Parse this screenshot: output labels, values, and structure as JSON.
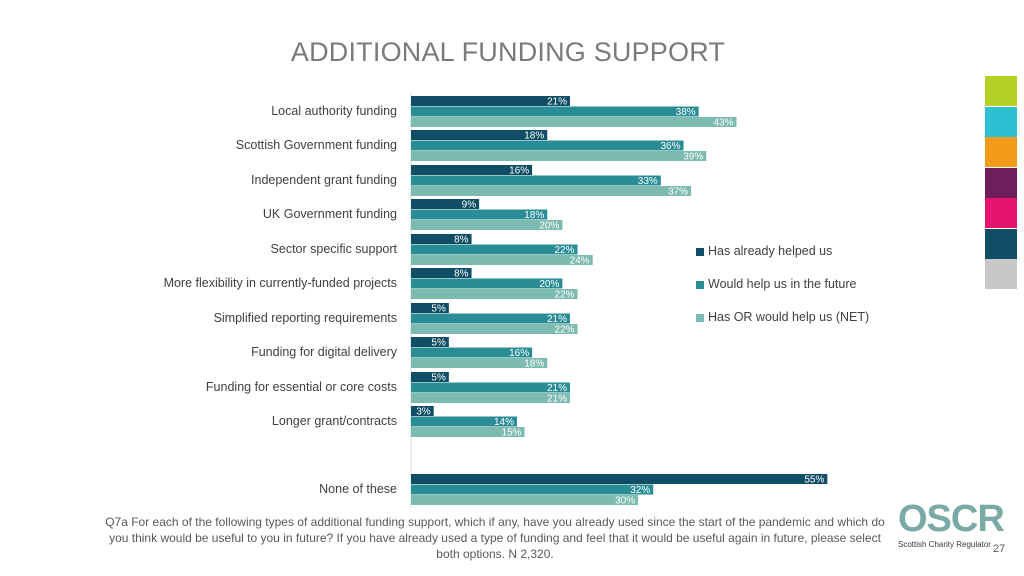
{
  "title": "ADDITIONAL FUNDING SUPPORT",
  "colors": {
    "series": [
      "#0f4e64",
      "#2a8d96",
      "#7dbbb0"
    ],
    "strip": [
      "#b6d025",
      "#2cc0d2",
      "#f39c1a",
      "#6e1f5b",
      "#e5146f",
      "#0f4e64",
      "#c8c8c8"
    ]
  },
  "chart_data": {
    "type": "bar",
    "orientation": "horizontal",
    "categories": [
      "Local authority funding",
      "Scottish Government funding",
      "Independent grant funding",
      "UK Government funding",
      "Sector specific support",
      "More flexibility in currently-funded projects",
      "Simplified reporting requirements",
      "Funding for digital delivery",
      "Funding for essential or core costs",
      "Longer grant/contracts",
      "None of these"
    ],
    "series": [
      {
        "name": "Has already helped us",
        "values": [
          21,
          18,
          16,
          9,
          8,
          8,
          5,
          5,
          5,
          3,
          55
        ],
        "labels": [
          "21%",
          "18%",
          "16%",
          "9%",
          "8%",
          "8%",
          "5%",
          "5%",
          "5%",
          "3%",
          "55%"
        ]
      },
      {
        "name": "Would help us in the future",
        "values": [
          38,
          36,
          33,
          18,
          22,
          20,
          21,
          16,
          21,
          14,
          32
        ],
        "labels": [
          "38%",
          "36%",
          "33%",
          "18%",
          "22%",
          "20%",
          "21%",
          "16%",
          "21%",
          "14%",
          "32%"
        ]
      },
      {
        "name": "Has OR would help us (NET)",
        "values": [
          43,
          39,
          37,
          20,
          24,
          22,
          22,
          18,
          21,
          15,
          30
        ],
        "labels": [
          "43%",
          "39%",
          "37%",
          "20%",
          "24%",
          "22%",
          "22%",
          "18%",
          "21%",
          "15%",
          "30%"
        ]
      }
    ],
    "xlim": [
      0,
      55
    ],
    "grid": false,
    "legend_position": "right"
  },
  "footnote": "Q7a For each of the following types of additional funding support, which if any, have you already used since the start of the pandemic and which do you think would be useful to you in future? If you have already used a type of funding and feel that it would be useful again in future, please select both options. N 2,320.",
  "logo": {
    "name": "OSCR",
    "subtitle": "Scottish Charity Regulator"
  },
  "page_number": "27"
}
